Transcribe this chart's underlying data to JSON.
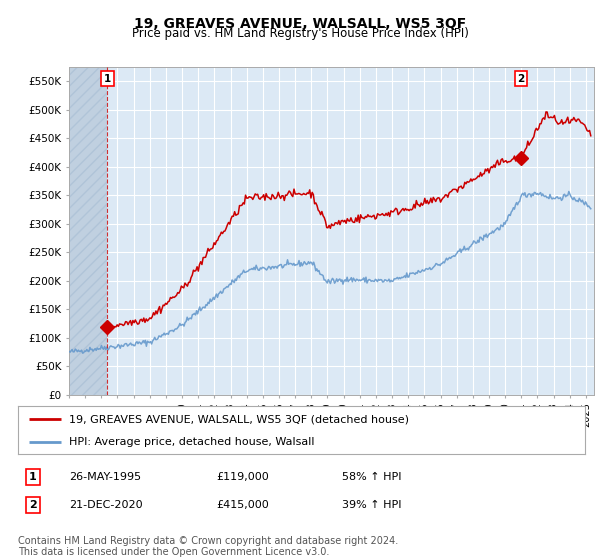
{
  "title": "19, GREAVES AVENUE, WALSALL, WS5 3QF",
  "subtitle": "Price paid vs. HM Land Registry's House Price Index (HPI)",
  "ylabel_ticks": [
    "£0",
    "£50K",
    "£100K",
    "£150K",
    "£200K",
    "£250K",
    "£300K",
    "£350K",
    "£400K",
    "£450K",
    "£500K",
    "£550K"
  ],
  "ylim": [
    0,
    575000
  ],
  "xlim_start": 1993.0,
  "xlim_end": 2025.5,
  "hatch_end": 1995.38,
  "sale1_date": 1995.38,
  "sale1_price": 119000,
  "sale1_label": "1",
  "sale2_date": 2020.97,
  "sale2_price": 415000,
  "sale2_label": "2",
  "legend_line1": "19, GREAVES AVENUE, WALSALL, WS5 3QF (detached house)",
  "legend_line2": "HPI: Average price, detached house, Walsall",
  "table_row1": [
    "1",
    "26-MAY-1995",
    "£119,000",
    "58% ↑ HPI"
  ],
  "table_row2": [
    "2",
    "21-DEC-2020",
    "£415,000",
    "39% ↑ HPI"
  ],
  "footer": "Contains HM Land Registry data © Crown copyright and database right 2024.\nThis data is licensed under the Open Government Licence v3.0.",
  "hpi_color": "#6699cc",
  "price_color": "#cc0000",
  "sale_marker_color": "#cc0000",
  "background_color": "#dce9f5",
  "hatch_color": "#c0d0e0",
  "grid_color": "#ffffff",
  "title_fontsize": 10,
  "subtitle_fontsize": 8.5,
  "tick_fontsize": 7.5,
  "legend_fontsize": 8,
  "table_fontsize": 8,
  "footer_fontsize": 7
}
